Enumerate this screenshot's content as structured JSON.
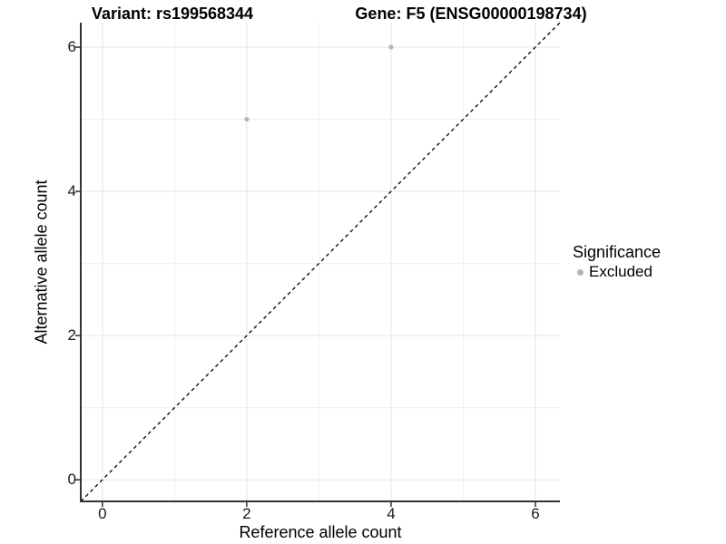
{
  "titles": {
    "variant": "Variant: rs199568344",
    "gene": "Gene: F5 (ENSG00000198734)"
  },
  "axes": {
    "x_label": "Reference allele count",
    "y_label": "Alternative allele count"
  },
  "legend": {
    "title": "Significance",
    "items": [
      {
        "label": "Excluded",
        "color": "#b5b5b5"
      }
    ]
  },
  "colors": {
    "background": "#ffffff",
    "point": "#b5b5b5",
    "grid_major": "#e4e4e4",
    "grid_minor": "#efefef",
    "axis_line": "#333333",
    "reference_line": "#111111",
    "text": "#000000"
  },
  "chart_data": {
    "type": "scatter",
    "title": "Variant: rs199568344 | Gene: F5 (ENSG00000198734)",
    "xlabel": "Reference allele count",
    "ylabel": "Alternative allele count",
    "xlim": [
      -0.3,
      6.34
    ],
    "ylim": [
      -0.3,
      6.34
    ],
    "x_ticks": [
      0,
      2,
      4,
      6
    ],
    "y_ticks": [
      0,
      2,
      4,
      6
    ],
    "x_minor_ticks": [
      1,
      3,
      5
    ],
    "y_minor_ticks": [
      1,
      3,
      5
    ],
    "grid": true,
    "points": [
      {
        "x": 2,
        "y": 5,
        "significance": "Excluded"
      },
      {
        "x": 4,
        "y": 6,
        "significance": "Excluded"
      }
    ],
    "reference_line": {
      "type": "abline",
      "slope": 1,
      "intercept": 0,
      "style": "dashed"
    },
    "legend": {
      "title": "Significance",
      "position": "right",
      "entries": [
        "Excluded"
      ]
    }
  }
}
